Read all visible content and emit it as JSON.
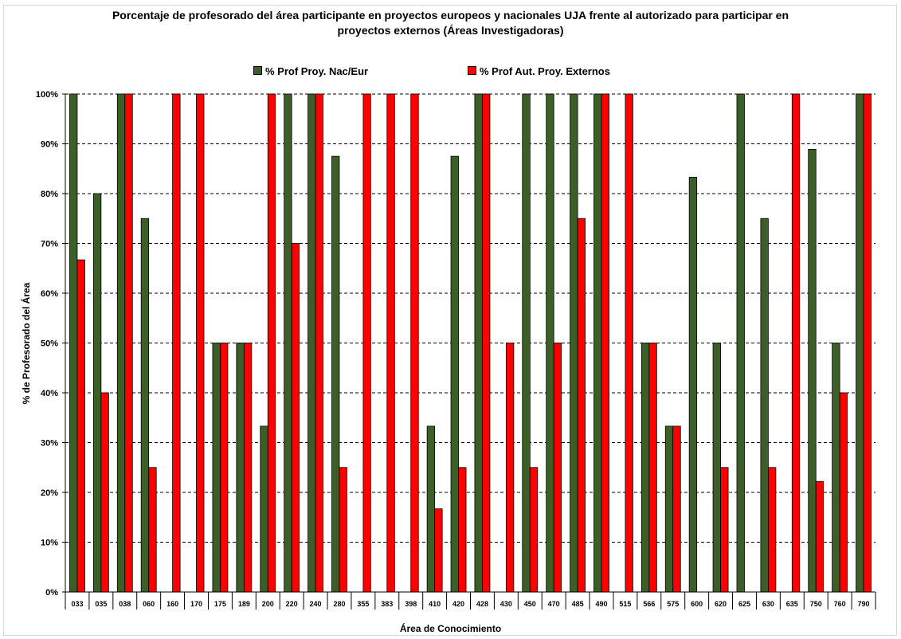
{
  "chart_data": {
    "type": "bar",
    "title_lines": [
      "Porcentaje de profesorado del área participante en proyectos europeos y nacionales UJA frente al autorizado para participar en",
      "proyectos externos  (Áreas Investigadoras)"
    ],
    "xlabel": "Área de Conocimiento",
    "ylabel": "% de Profesorado del Área",
    "ylim": [
      0,
      100
    ],
    "yticks": [
      "0%",
      "10%",
      "20%",
      "30%",
      "40%",
      "50%",
      "60%",
      "70%",
      "80%",
      "90%",
      "100%"
    ],
    "grid": "horizontal dashed",
    "legend_position": "top",
    "categories": [
      "033",
      "035",
      "038",
      "060",
      "160",
      "170",
      "175",
      "189",
      "200",
      "220",
      "240",
      "280",
      "355",
      "383",
      "398",
      "410",
      "420",
      "428",
      "430",
      "450",
      "470",
      "485",
      "490",
      "515",
      "566",
      "575",
      "600",
      "620",
      "625",
      "630",
      "635",
      "750",
      "760",
      "790"
    ],
    "series": [
      {
        "name": "% Prof Proy. Nac/Eur",
        "color": "#3c5f28",
        "values": [
          100,
          80,
          100,
          75,
          0,
          0,
          50,
          50,
          33.3,
          100,
          100,
          87.5,
          0,
          0,
          0,
          33.3,
          87.5,
          100,
          0,
          100,
          100,
          100,
          100,
          0,
          50,
          33.3,
          83.3,
          50,
          100,
          75,
          0,
          88.9,
          50,
          100
        ]
      },
      {
        "name": "% Prof Aut. Proy. Externos",
        "color": "#ff0000",
        "values": [
          66.7,
          40,
          100,
          25,
          100,
          100,
          50,
          50,
          100,
          70,
          100,
          25,
          100,
          100,
          100,
          16.7,
          25,
          100,
          50,
          25,
          50,
          75,
          100,
          100,
          50,
          33.3,
          0,
          25,
          0,
          25,
          100,
          22.2,
          40,
          100
        ]
      }
    ]
  }
}
